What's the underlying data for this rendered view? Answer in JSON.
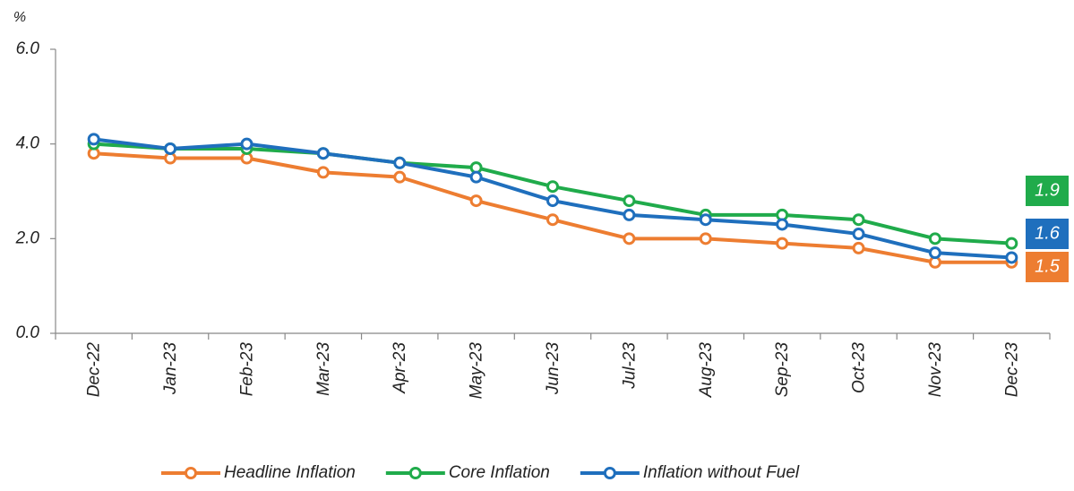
{
  "chart_data": {
    "type": "line",
    "y_unit": "%",
    "categories": [
      "Dec-22",
      "Jan-23",
      "Feb-23",
      "Mar-23",
      "Apr-23",
      "May-23",
      "Jun-23",
      "Jul-23",
      "Aug-23",
      "Sep-23",
      "Oct-23",
      "Nov-23",
      "Dec-23"
    ],
    "series": [
      {
        "name": "Headline Inflation",
        "color": "#ed7d31",
        "values": [
          3.8,
          3.7,
          3.7,
          3.4,
          3.3,
          2.8,
          2.4,
          2.0,
          2.0,
          1.9,
          1.8,
          1.5,
          1.5
        ]
      },
      {
        "name": "Core Inflation",
        "color": "#20ab4b",
        "values": [
          4.0,
          3.9,
          3.9,
          3.8,
          3.6,
          3.5,
          3.1,
          2.8,
          2.5,
          2.5,
          2.4,
          2.0,
          1.9
        ]
      },
      {
        "name": "Inflation without Fuel",
        "color": "#1f6fbd",
        "values": [
          4.1,
          3.9,
          4.0,
          3.8,
          3.6,
          3.3,
          2.8,
          2.5,
          2.4,
          2.3,
          2.1,
          1.7,
          1.6
        ]
      }
    ],
    "ylim": [
      0,
      6
    ],
    "yticks": [
      {
        "value": 0,
        "label": "0.0"
      },
      {
        "value": 2,
        "label": "2.0"
      },
      {
        "value": 4,
        "label": "4.0"
      },
      {
        "value": 6,
        "label": "6.0"
      }
    ],
    "grid": false,
    "legend": "bottom"
  }
}
